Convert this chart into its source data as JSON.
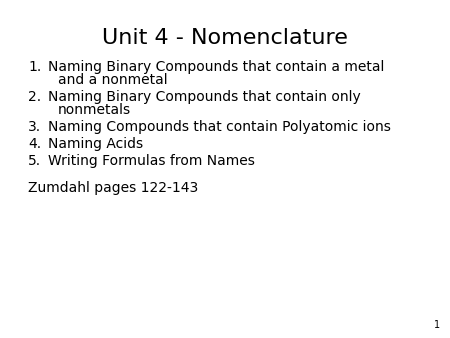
{
  "title": "Unit 4 - Nomenclature",
  "title_fontsize": 16,
  "title_color": "#000000",
  "background_color": "#ffffff",
  "list_items": [
    [
      "Naming Binary Compounds that contain a metal",
      "and a nonmetal"
    ],
    [
      "Naming Binary Compounds that contain only",
      "nonmetals"
    ],
    [
      "Naming Compounds that contain Polyatomic ions"
    ],
    [
      "Naming Acids"
    ],
    [
      "Writing Formulas from Names"
    ]
  ],
  "list_fontsize": 10,
  "list_color": "#000000",
  "footer": "Zumdahl pages 122-143",
  "footer_fontsize": 10,
  "footer_color": "#000000",
  "page_number": "1",
  "page_number_fontsize": 7,
  "page_number_color": "#000000"
}
